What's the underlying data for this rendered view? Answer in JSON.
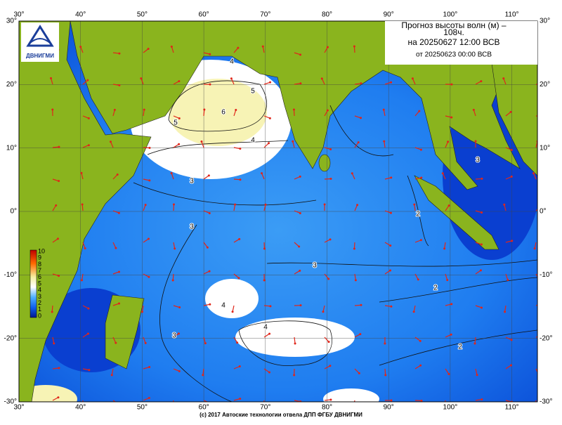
{
  "header": {
    "title_lines": [
      "Прогноз высоты волн (м) –",
      "108ч.",
      "на 20250627 12:00 ВСВ",
      "от 20250623 00:00 ВСВ"
    ],
    "logo": "ДВНИГМИ"
  },
  "axes": {
    "lon": [
      {
        "value": 30,
        "label": "30°"
      },
      {
        "value": 40,
        "label": "40°"
      },
      {
        "value": 50,
        "label": "50°"
      },
      {
        "value": 60,
        "label": "60°"
      },
      {
        "value": 70,
        "label": "70°"
      },
      {
        "value": 80,
        "label": "80°"
      },
      {
        "value": 90,
        "label": "90°"
      },
      {
        "value": 100,
        "label": "100°"
      },
      {
        "value": 110,
        "label": "110°"
      }
    ],
    "lat": [
      {
        "value": 30,
        "label": "30°"
      },
      {
        "value": 20,
        "label": "20°"
      },
      {
        "value": 10,
        "label": "10°"
      },
      {
        "value": 0,
        "label": "0°"
      },
      {
        "value": -10,
        "label": "-10°"
      },
      {
        "value": -20,
        "label": "-20°"
      },
      {
        "value": -30,
        "label": "-30°"
      }
    ]
  },
  "colorbar": [
    10,
    9,
    8,
    7,
    6,
    5,
    4,
    3,
    2,
    1,
    0
  ],
  "contour_labels": [
    4,
    5,
    6,
    5,
    4,
    3,
    3,
    3,
    4,
    4,
    3,
    2,
    2,
    2,
    3
  ],
  "footer": "(c) 2017 Автоские технологии отвела ДПП ФГБУ ДВНИГМИ"
}
